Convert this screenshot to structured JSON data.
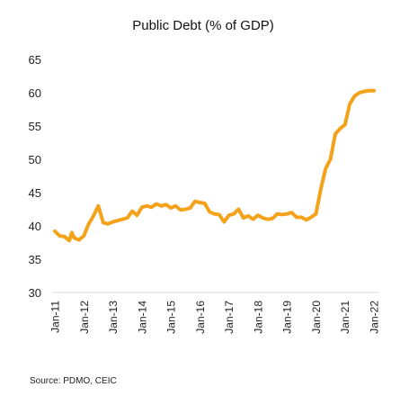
{
  "chart_data": {
    "type": "line",
    "title": "Public Debt (% of GDP)",
    "source": "Source: PDMO, CEIC",
    "xlabel": "",
    "ylabel": "",
    "ylim": [
      30,
      65
    ],
    "yticks": [
      "30",
      "35",
      "40",
      "45",
      "50",
      "55",
      "60",
      "65"
    ],
    "xticks": [
      "Jan-11",
      "Jan-12",
      "Jan-13",
      "Jan-14",
      "Jan-15",
      "Jan-16",
      "Jan-17",
      "Jan-18",
      "Jan-19",
      "Jan-20",
      "Jan-21",
      "Jan-22"
    ],
    "grid": false,
    "legend": "none",
    "series": [
      {
        "color": "#F5A21B",
        "x": [
          "2011-01",
          "2011-03",
          "2011-05",
          "2011-07",
          "2011-08",
          "2011-09",
          "2011-11",
          "2012-01",
          "2012-03",
          "2012-05",
          "2012-07",
          "2012-09",
          "2012-11",
          "2013-01",
          "2013-03",
          "2013-05",
          "2013-07",
          "2013-09",
          "2013-11",
          "2014-01",
          "2014-03",
          "2014-05",
          "2014-07",
          "2014-09",
          "2014-11",
          "2015-01",
          "2015-03",
          "2015-05",
          "2015-07",
          "2015-09",
          "2015-11",
          "2016-01",
          "2016-03",
          "2016-05",
          "2016-07",
          "2016-09",
          "2016-11",
          "2017-01",
          "2017-03",
          "2017-05",
          "2017-07",
          "2017-09",
          "2017-11",
          "2018-01",
          "2018-03",
          "2018-05",
          "2018-07",
          "2018-09",
          "2018-11",
          "2019-01",
          "2019-03",
          "2019-05",
          "2019-07",
          "2019-09",
          "2019-11",
          "2020-01",
          "2020-03",
          "2020-05",
          "2020-07",
          "2020-09",
          "2020-11",
          "2021-01",
          "2021-03",
          "2021-05",
          "2021-07",
          "2021-09",
          "2021-11",
          "2022-01"
        ],
        "values": [
          39.2,
          38.5,
          38.4,
          37.8,
          39.0,
          38.2,
          37.9,
          38.5,
          40.3,
          41.5,
          43.0,
          40.5,
          40.3,
          40.6,
          40.8,
          41.0,
          41.2,
          42.2,
          41.6,
          42.8,
          43.0,
          42.8,
          43.3,
          43.0,
          43.2,
          42.7,
          43.0,
          42.4,
          42.5,
          42.7,
          43.7,
          43.5,
          43.4,
          42.1,
          41.8,
          41.7,
          40.6,
          41.6,
          41.8,
          42.5,
          41.2,
          41.5,
          41.0,
          41.6,
          41.2,
          41.0,
          41.1,
          41.8,
          41.7,
          41.8,
          42.0,
          41.3,
          41.3,
          40.9,
          41.3,
          41.8,
          45.5,
          48.6,
          50.0,
          53.8,
          54.6,
          55.2,
          58.3,
          59.5,
          60.0,
          60.2,
          60.3,
          60.3
        ]
      }
    ]
  }
}
